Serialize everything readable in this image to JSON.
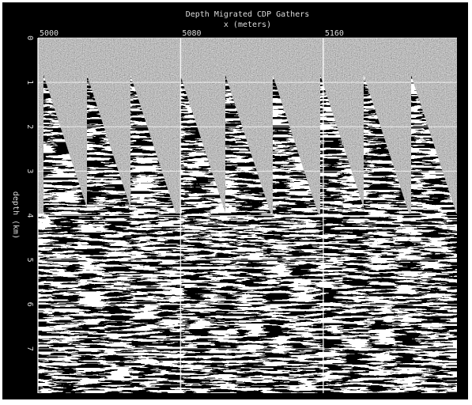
{
  "chart_data": {
    "type": "seismic",
    "title": "Depth Migrated CDP Gathers",
    "x_label": "x (meters)",
    "y_label": "depth (km)",
    "xlim": [
      5000,
      5235
    ],
    "xticks": [
      5000,
      5080,
      5160
    ],
    "ylim": [
      0,
      8
    ],
    "yticks": [
      0,
      1,
      2,
      3,
      4,
      5,
      6,
      7
    ],
    "y_inverted": true,
    "grid": true
  }
}
